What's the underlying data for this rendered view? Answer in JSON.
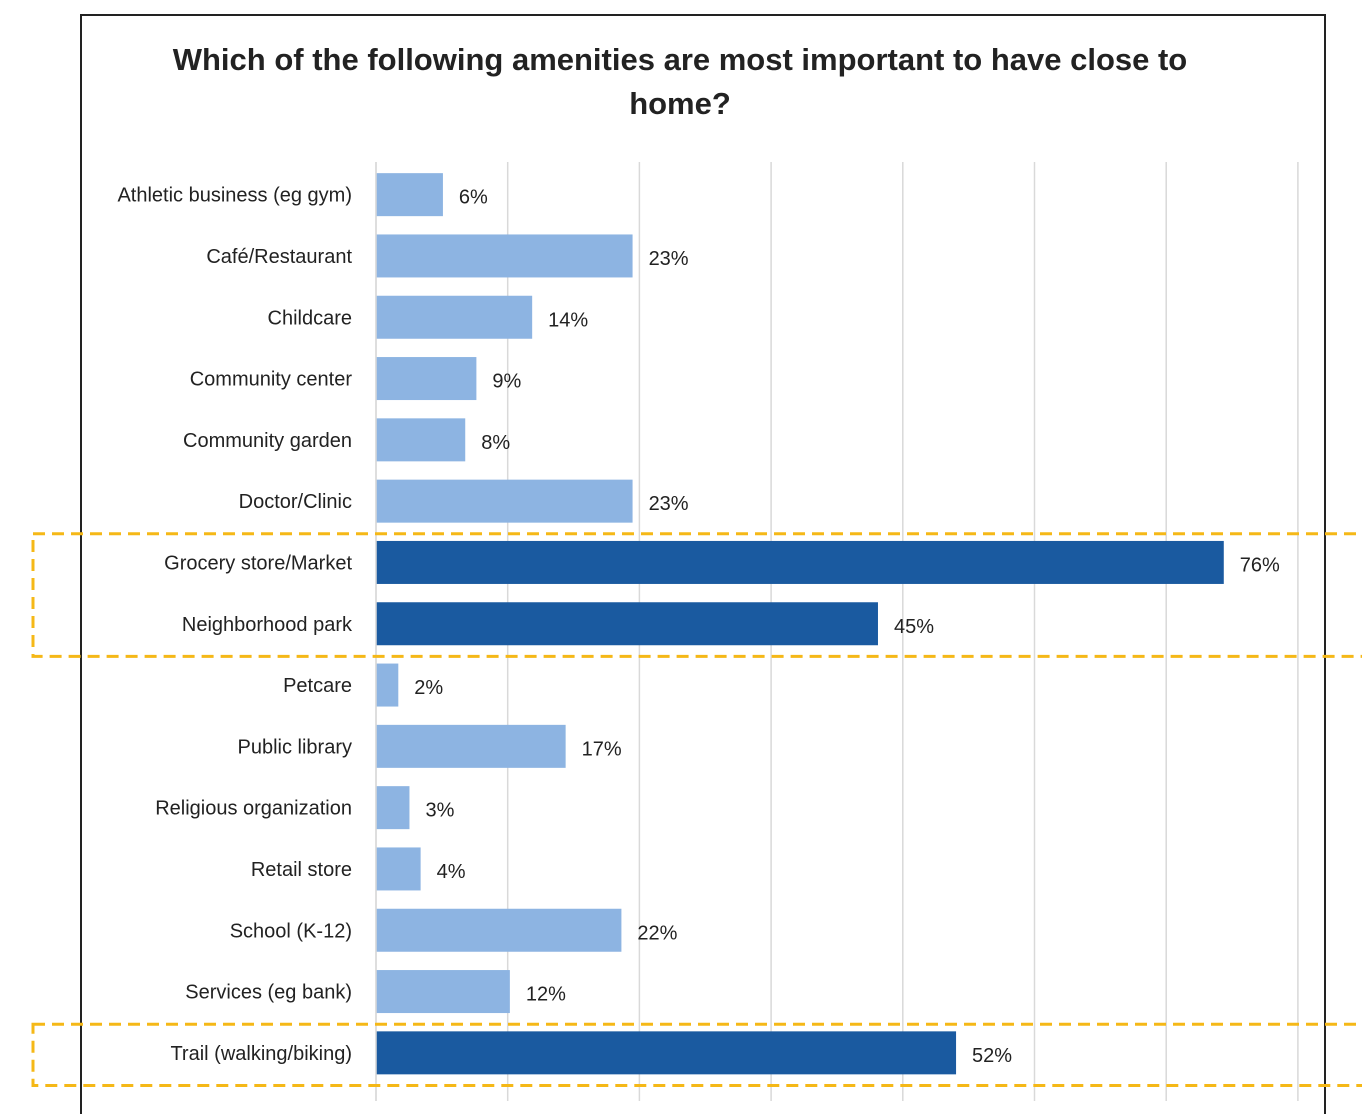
{
  "chart_data": {
    "type": "bar",
    "orientation": "horizontal",
    "title": "Which of the following amenities are most important to have close to home?",
    "xlim": [
      0,
      80
    ],
    "grid": true,
    "categories": [
      "Athletic business (eg gym)",
      "Café/Restaurant",
      "Childcare",
      "Community center",
      "Community garden",
      "Doctor/Clinic",
      "Grocery store/Market",
      "Neighborhood park",
      "Petcare",
      "Public library",
      "Religious organization",
      "Retail store",
      "School (K-12)",
      "Services (eg bank)",
      "Trail (walking/biking)"
    ],
    "values": [
      6,
      23,
      14,
      9,
      8,
      23,
      76,
      45,
      2,
      17,
      3,
      4,
      22,
      12,
      52
    ],
    "value_labels": [
      "6%",
      "23%",
      "14%",
      "9%",
      "8%",
      "23%",
      "76%",
      "45%",
      "2%",
      "17%",
      "3%",
      "4%",
      "22%",
      "12%",
      "52%"
    ],
    "highlighted": [
      false,
      false,
      false,
      false,
      false,
      false,
      true,
      true,
      false,
      false,
      false,
      false,
      false,
      false,
      true
    ],
    "highlight_groups": [
      [
        6,
        7
      ],
      [
        14
      ]
    ],
    "colors": {
      "bar": "#8db4e2",
      "bar_highlight": "#1a5aa0",
      "highlight_box": "#f5b817",
      "grid": "#d9d9d9"
    }
  }
}
